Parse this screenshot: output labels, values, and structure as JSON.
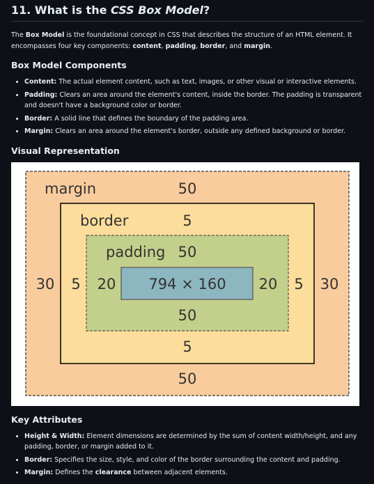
{
  "heading": {
    "number": "11. What is the ",
    "em": "CSS Box Model",
    "end": "?"
  },
  "intro": {
    "p1": "The ",
    "b1": "Box Model",
    "p2": " is the foundational concept in CSS that describes the structure of an HTML element. It encompasses four key components: ",
    "b2": "content",
    "p3": ", ",
    "b3": "padding",
    "p4": ", ",
    "b4": "border",
    "p5": ", and ",
    "b5": "margin",
    "p6": "."
  },
  "components": {
    "title": "Box Model Components",
    "items": [
      {
        "label": "Content:",
        "text": " The actual element content, such as text, images, or other visual or interactive elements."
      },
      {
        "label": "Padding:",
        "text": " Clears an area around the element's content, inside the border. The padding is transparent and doesn't have a background color or border."
      },
      {
        "label": "Border:",
        "text": " A solid line that defines the boundary of the padding area."
      },
      {
        "label": "Margin:",
        "text": " Clears an area around the element's border, outside any defined background or border."
      }
    ]
  },
  "visual": {
    "title": "Visual Representation",
    "margin_label": "margin",
    "border_label": "border",
    "padding_label": "padding",
    "margin_top": "50",
    "margin_bottom": "50",
    "margin_left": "30",
    "margin_right": "30",
    "border_top": "5",
    "border_bottom": "5",
    "border_left": "5",
    "border_right": "5",
    "padding_top": "50",
    "padding_bottom": "50",
    "padding_left": "20",
    "padding_right": "20",
    "content_size": "794 × 160",
    "colors": {
      "margin": "#f9cc9d",
      "border": "#fddd9b",
      "padding": "#c3d08b",
      "content": "#8cb6c0"
    }
  },
  "attributes": {
    "title": "Key Attributes",
    "items": [
      {
        "label": "Height & Width:",
        "text": " Element dimensions are determined by the sum of content width/height, and any padding, border, or margin added to it."
      },
      {
        "label": "Border:",
        "text": " Specifies the size, style, and color of the border surrounding the content and padding."
      },
      {
        "label": "Margin:",
        "text": " Defines the ",
        "bold2": "clearance",
        "text2": " between adjacent elements."
      }
    ]
  }
}
